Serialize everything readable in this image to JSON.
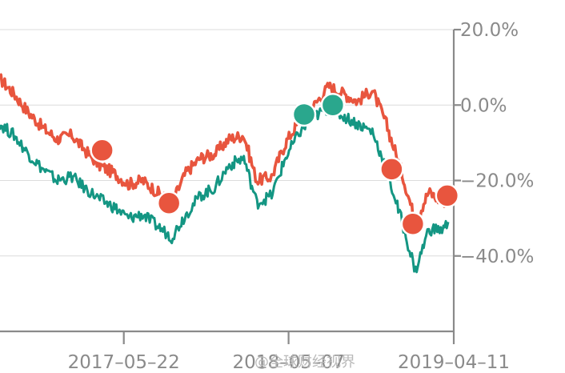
{
  "chart_data": {
    "type": "line",
    "title": "",
    "xlabel": "",
    "ylabel": "",
    "ylim": [
      -60,
      20
    ],
    "y_ticks": [
      {
        "value": 20,
        "label": "20.0%"
      },
      {
        "value": 0,
        "label": "0.0%"
      },
      {
        "value": -20,
        "label": "−20.0%"
      },
      {
        "value": -40,
        "label": "−40.0%"
      }
    ],
    "x_ticks": [
      {
        "value": "2017-05-22",
        "label": "2017–05–22"
      },
      {
        "value": "2018-05-07",
        "label": "2018–05–07"
      },
      {
        "value": "2019-04-11",
        "label": "2019–04–11"
      }
    ],
    "grid": true,
    "y_axis_position": "right",
    "series": [
      {
        "color": "#e8553e",
        "points": [
          [
            "2016-09-01",
            7
          ],
          [
            "2016-10-01",
            3
          ],
          [
            "2016-11-01",
            -2
          ],
          [
            "2016-12-01",
            -6
          ],
          [
            "2017-01-01",
            -9
          ],
          [
            "2017-02-01",
            -8
          ],
          [
            "2017-03-01",
            -12
          ],
          [
            "2017-04-01",
            -16
          ],
          [
            "2017-05-01",
            -18
          ],
          [
            "2017-06-01",
            -21
          ],
          [
            "2017-07-01",
            -20
          ],
          [
            "2017-08-01",
            -23
          ],
          [
            "2017-09-01",
            -26
          ],
          [
            "2017-10-01",
            -18
          ],
          [
            "2017-11-01",
            -14
          ],
          [
            "2017-12-01",
            -13
          ],
          [
            "2018-01-01",
            -9
          ],
          [
            "2018-02-01",
            -8
          ],
          [
            "2018-03-01",
            -20
          ],
          [
            "2018-04-01",
            -19
          ],
          [
            "2018-05-01",
            -10
          ],
          [
            "2018-06-01",
            -4
          ],
          [
            "2018-07-01",
            0
          ],
          [
            "2018-08-01",
            5
          ],
          [
            "2018-09-01",
            3
          ],
          [
            "2018-10-01",
            1
          ],
          [
            "2018-11-01",
            4
          ],
          [
            "2018-12-01",
            -5
          ],
          [
            "2019-01-01",
            -17
          ],
          [
            "2019-02-01",
            -31
          ],
          [
            "2019-03-01",
            -23
          ],
          [
            "2019-04-01",
            -26
          ],
          [
            "2019-04-11",
            -24
          ]
        ]
      },
      {
        "color": "#149683",
        "points": [
          [
            "2016-09-01",
            -5
          ],
          [
            "2016-10-01",
            -8
          ],
          [
            "2016-11-01",
            -13
          ],
          [
            "2016-12-01",
            -17
          ],
          [
            "2017-01-01",
            -20
          ],
          [
            "2017-02-01",
            -19
          ],
          [
            "2017-03-01",
            -22
          ],
          [
            "2017-04-01",
            -25
          ],
          [
            "2017-05-01",
            -27
          ],
          [
            "2017-06-01",
            -30
          ],
          [
            "2017-07-01",
            -29
          ],
          [
            "2017-08-01",
            -32
          ],
          [
            "2017-09-01",
            -35
          ],
          [
            "2017-10-01",
            -29
          ],
          [
            "2017-11-01",
            -24
          ],
          [
            "2017-12-01",
            -22
          ],
          [
            "2018-01-01",
            -16
          ],
          [
            "2018-02-01",
            -14
          ],
          [
            "2018-03-01",
            -26
          ],
          [
            "2018-04-01",
            -24
          ],
          [
            "2018-05-01",
            -14
          ],
          [
            "2018-06-01",
            -7
          ],
          [
            "2018-07-01",
            -3
          ],
          [
            "2018-08-01",
            -1
          ],
          [
            "2018-09-01",
            -3
          ],
          [
            "2018-10-01",
            -5
          ],
          [
            "2018-11-01",
            -7
          ],
          [
            "2018-12-01",
            -17
          ],
          [
            "2019-01-01",
            -30
          ],
          [
            "2019-02-01",
            -44
          ],
          [
            "2019-03-01",
            -33
          ],
          [
            "2019-04-01",
            -33
          ],
          [
            "2019-04-11",
            -31
          ]
        ]
      }
    ],
    "markers": [
      {
        "date": "2017-04-06",
        "value": -12,
        "color": "#e8553e"
      },
      {
        "date": "2017-08-26",
        "value": -26,
        "color": "#e8553e"
      },
      {
        "date": "2018-06-09",
        "value": -2.5,
        "color": "#2aa78d"
      },
      {
        "date": "2018-08-09",
        "value": 0,
        "color": "#2aa78d"
      },
      {
        "date": "2018-12-12",
        "value": -17,
        "color": "#e8553e"
      },
      {
        "date": "2019-01-26",
        "value": -31.5,
        "color": "#e8553e"
      },
      {
        "date": "2019-04-09",
        "value": -24,
        "color": "#e8553e"
      }
    ]
  },
  "watermark": {
    "text": "@全球财经视界"
  }
}
